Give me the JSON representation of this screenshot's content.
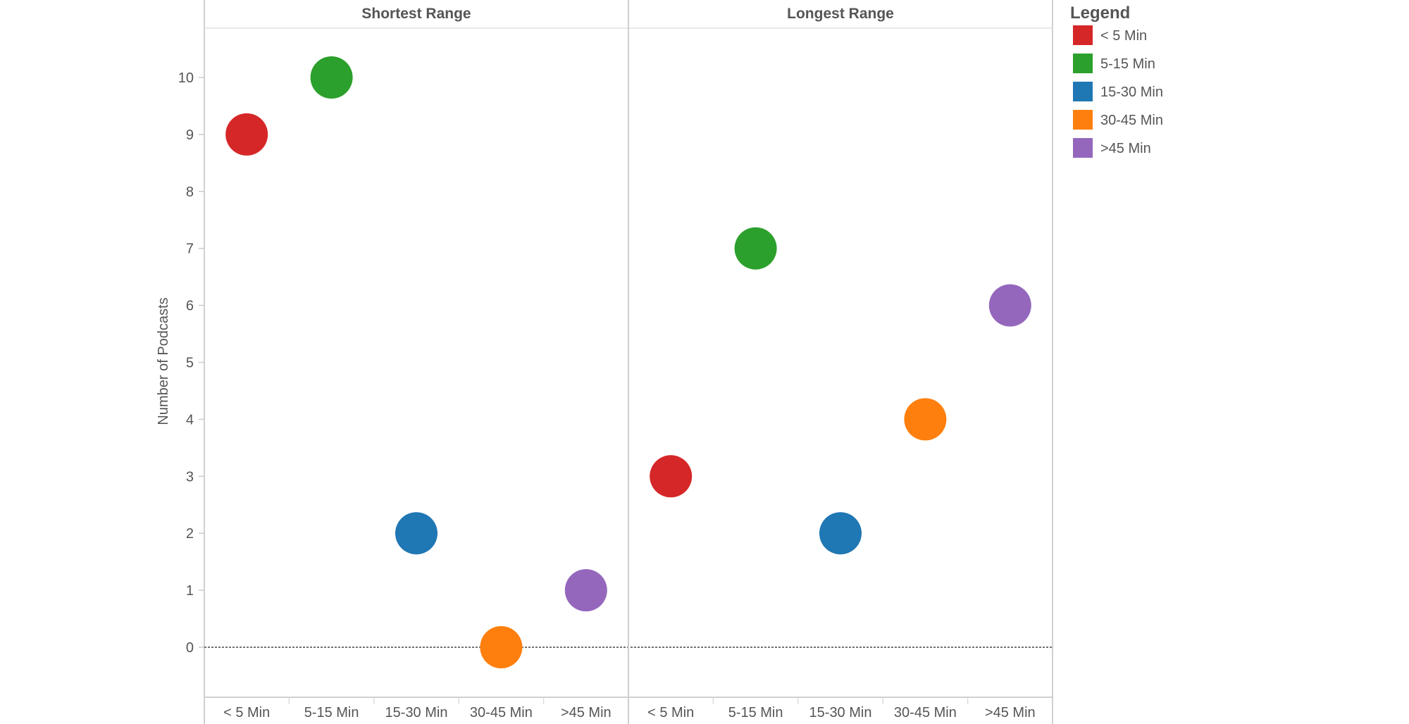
{
  "chart_data": {
    "type": "scatter",
    "title": "",
    "ylabel": "Number of Podcasts",
    "xlabel": "",
    "ylim": [
      -0.9,
      10.9
    ],
    "yticks": [
      0,
      1,
      2,
      3,
      4,
      5,
      6,
      7,
      8,
      9,
      10
    ],
    "categories": [
      "< 5 Min",
      "5-15 Min",
      "15-30 Min",
      "30-45 Min",
      ">45 Min"
    ],
    "panels": [
      {
        "name": "Shortest Range",
        "values": [
          9,
          10,
          2,
          0,
          1
        ]
      },
      {
        "name": "Longest Range",
        "values": [
          3,
          7,
          2,
          4,
          6
        ]
      }
    ],
    "colors": [
      "#d62728",
      "#2ca02c",
      "#1f77b4",
      "#ff7f0e",
      "#9467bd"
    ],
    "legend": {
      "title": "Legend",
      "placement": "right",
      "entries": [
        "< 5 Min",
        "5-15 Min",
        "15-30 Min",
        "30-45 Min",
        ">45 Min"
      ]
    },
    "grid": false,
    "reference_line": 0
  }
}
